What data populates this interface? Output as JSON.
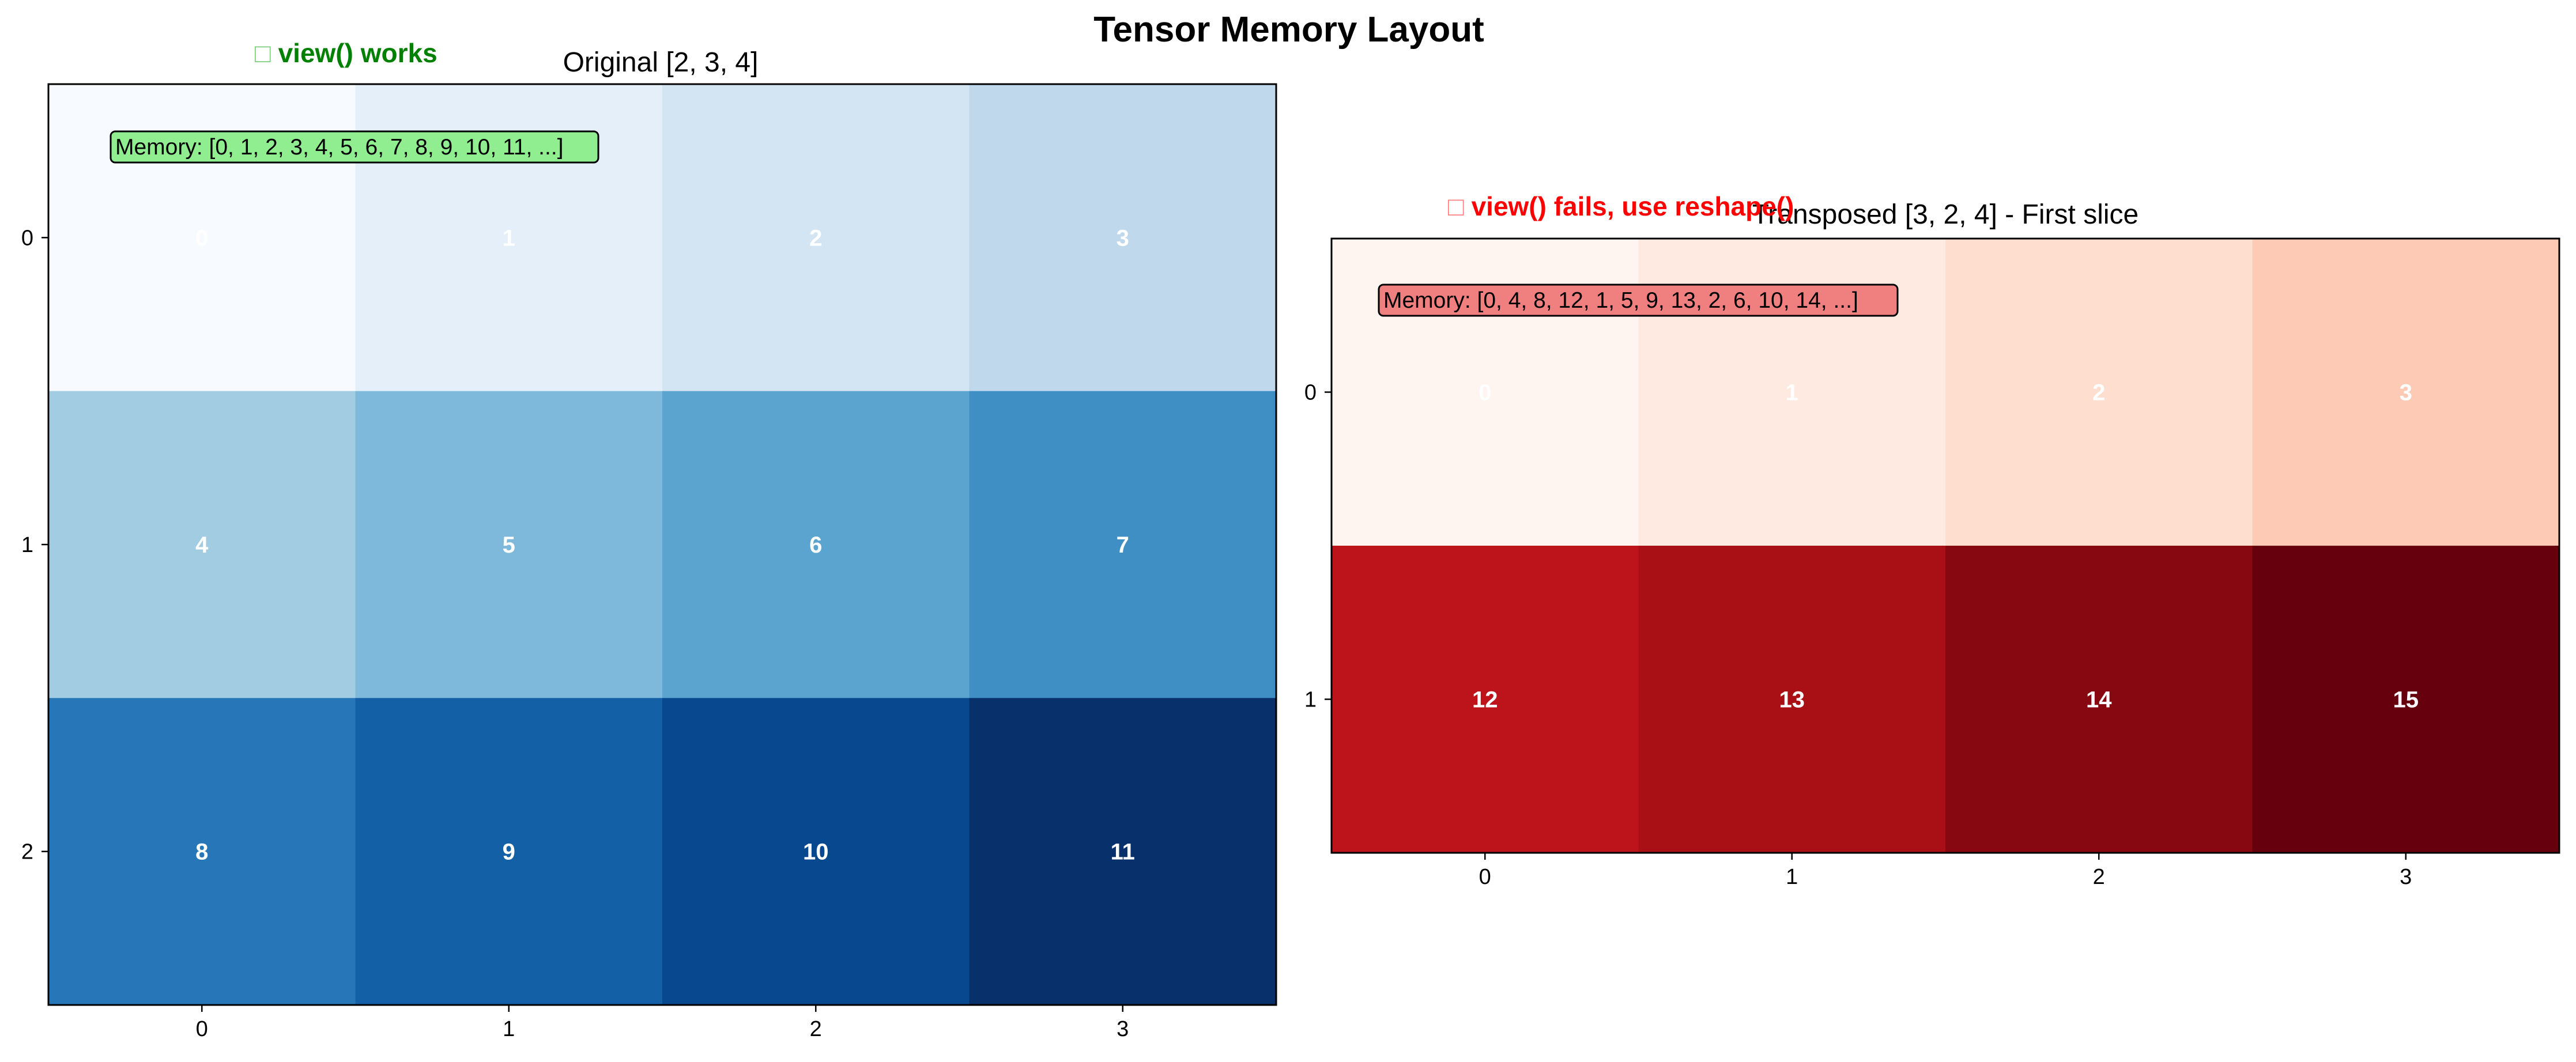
{
  "figure": {
    "title": "Tensor Memory Layout"
  },
  "chart_data": [
    {
      "type": "heatmap",
      "title": "Original [2, 3, 4]",
      "status": {
        "text": "view() works",
        "glyph": "□",
        "color": "#008000"
      },
      "memory": {
        "text": "Memory: [0, 1, 2, 3, 4, 5, 6, 7, 8, 9, 10, 11, ...]",
        "box_color": "#90ee90"
      },
      "colormap": "Blues",
      "x_ticks": [
        "0",
        "1",
        "2",
        "3"
      ],
      "y_ticks": [
        "0",
        "1",
        "2"
      ],
      "values": [
        [
          0,
          1,
          2,
          3
        ],
        [
          4,
          5,
          6,
          7
        ],
        [
          8,
          9,
          10,
          11
        ]
      ]
    },
    {
      "type": "heatmap",
      "title": "Transposed [3, 2, 4] - First slice",
      "status": {
        "text": "view() fails, use reshape()",
        "glyph": "□",
        "color": "#ff0000"
      },
      "memory": {
        "text": "Memory: [0, 4, 8, 12, 1, 5, 9, 13, 2, 6, 10, 14, ...]",
        "box_color": "#f08080"
      },
      "colormap": "Reds",
      "x_ticks": [
        "0",
        "1",
        "2",
        "3"
      ],
      "y_ticks": [
        "0",
        "1"
      ],
      "values": [
        [
          0,
          1,
          2,
          3
        ],
        [
          12,
          13,
          14,
          15
        ]
      ]
    }
  ]
}
